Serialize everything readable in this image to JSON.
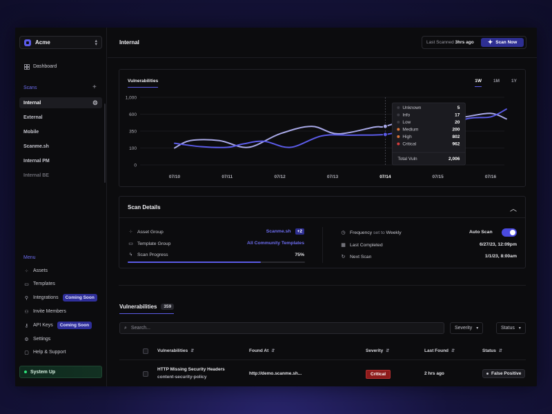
{
  "org": {
    "name": "Acme"
  },
  "sidebar": {
    "dashboard": "Dashboard",
    "scans_label": "Scans",
    "scans": [
      "Internal",
      "External",
      "Mobile",
      "Scanme.sh",
      "Internal PM",
      "Internal BE"
    ],
    "menu_label": "Menu",
    "menu": [
      {
        "label": "Assets",
        "icon": "assets-icon"
      },
      {
        "label": "Templates",
        "icon": "templates-icon"
      },
      {
        "label": "Integrations",
        "icon": "integrations-icon",
        "badge": "Coming Soon"
      },
      {
        "label": "Invite Members",
        "icon": "invite-icon"
      },
      {
        "label": "API Keys",
        "icon": "key-icon",
        "badge": "Coming Soon"
      },
      {
        "label": "Settings",
        "icon": "gear-icon"
      },
      {
        "label": "Help & Support",
        "icon": "help-icon"
      }
    ],
    "status": "System Up"
  },
  "header": {
    "title": "Internal",
    "last_scanned_label": "Last Scanned",
    "last_scanned_value": "3hrs ago",
    "scan_now": "Scan Now"
  },
  "chart_card": {
    "tab": "Vulnerabilities",
    "ranges": [
      "1W",
      "1M",
      "1Y"
    ],
    "active_range": "1W"
  },
  "chart_data": {
    "type": "line",
    "title": "Vulnerabilities",
    "x": [
      "07/10",
      "07/11",
      "07/12",
      "07/13",
      "07/14",
      "07/15",
      "07/16"
    ],
    "y_ticks": [
      "1,000",
      "600",
      "350",
      "100",
      "0"
    ],
    "ylim": [
      0,
      1000
    ],
    "grid": true,
    "series": [
      {
        "color": "#a9a9e8",
        "points": [
          [
            0,
            100
          ],
          [
            0.3,
            210
          ],
          [
            0.85,
            210
          ],
          [
            1.4,
            110
          ],
          [
            2.0,
            310
          ],
          [
            2.6,
            420
          ],
          [
            3.1,
            310
          ],
          [
            3.8,
            410
          ],
          [
            4.0,
            420
          ],
          [
            4.6,
            560
          ],
          [
            5.0,
            530
          ],
          [
            5.5,
            560
          ],
          [
            6.0,
            620
          ],
          [
            6.3,
            530
          ]
        ]
      },
      {
        "color": "#5b5be8",
        "points": [
          [
            0,
            170
          ],
          [
            0.5,
            120
          ],
          [
            1.0,
            110
          ],
          [
            1.3,
            160
          ],
          [
            1.7,
            200
          ],
          [
            2.2,
            110
          ],
          [
            2.8,
            280
          ],
          [
            3.4,
            290
          ],
          [
            4.0,
            300
          ],
          [
            4.5,
            380
          ],
          [
            5.0,
            420
          ],
          [
            5.6,
            540
          ],
          [
            6.0,
            560
          ],
          [
            6.3,
            720
          ]
        ]
      }
    ],
    "crosshair_x": "07/14",
    "tooltip": {
      "rows": [
        {
          "label": "Unknown",
          "value": "5",
          "color": "#3a3a42"
        },
        {
          "label": "Info",
          "value": "17",
          "color": "#3a3a42"
        },
        {
          "label": "Low",
          "value": "20",
          "color": "#3a3a42"
        },
        {
          "label": "Medium",
          "value": "200",
          "color": "#d9743a"
        },
        {
          "label": "High",
          "value": "802",
          "color": "#d9743a"
        },
        {
          "label": "Critical",
          "value": "962",
          "color": "#d23c3c"
        }
      ],
      "total_label": "Total Vuln",
      "total_value": "2,006"
    }
  },
  "details": {
    "title": "Scan Details",
    "asset_group_label": "Asset Group",
    "asset_group_value": "Scanme.sh",
    "asset_group_extra": "+2",
    "template_group_label": "Template Group",
    "template_group_value": "All Community Templates",
    "progress_label": "Scan Progress",
    "progress_value": "75%",
    "progress_fraction": 0.75,
    "frequency_label": "Frequency",
    "frequency_set_to": "set to",
    "frequency_value": "Weekly",
    "auto_scan_label": "Auto Scan",
    "auto_scan_on": true,
    "last_completed_label": "Last Completed",
    "last_completed_value": "6/27/23, 12:09pm",
    "next_scan_label": "Next Scan",
    "next_scan_value": "1/1/23, 8:00am"
  },
  "vulns": {
    "tab": "Vulnerabilities",
    "count": "359",
    "search_placeholder": "Search...",
    "filters": [
      "Severity",
      "Status"
    ],
    "columns": [
      "Vulnerabilities",
      "Found At",
      "Severity",
      "Last Found",
      "Status"
    ],
    "rows": [
      {
        "name": "HTTP Missing Security Headers",
        "sub": "content-security-policy",
        "found_at": "http://demo.scanme.sh...",
        "severity": "Critical",
        "last_found": "2 hrs ago",
        "status": "False Positive"
      }
    ]
  }
}
